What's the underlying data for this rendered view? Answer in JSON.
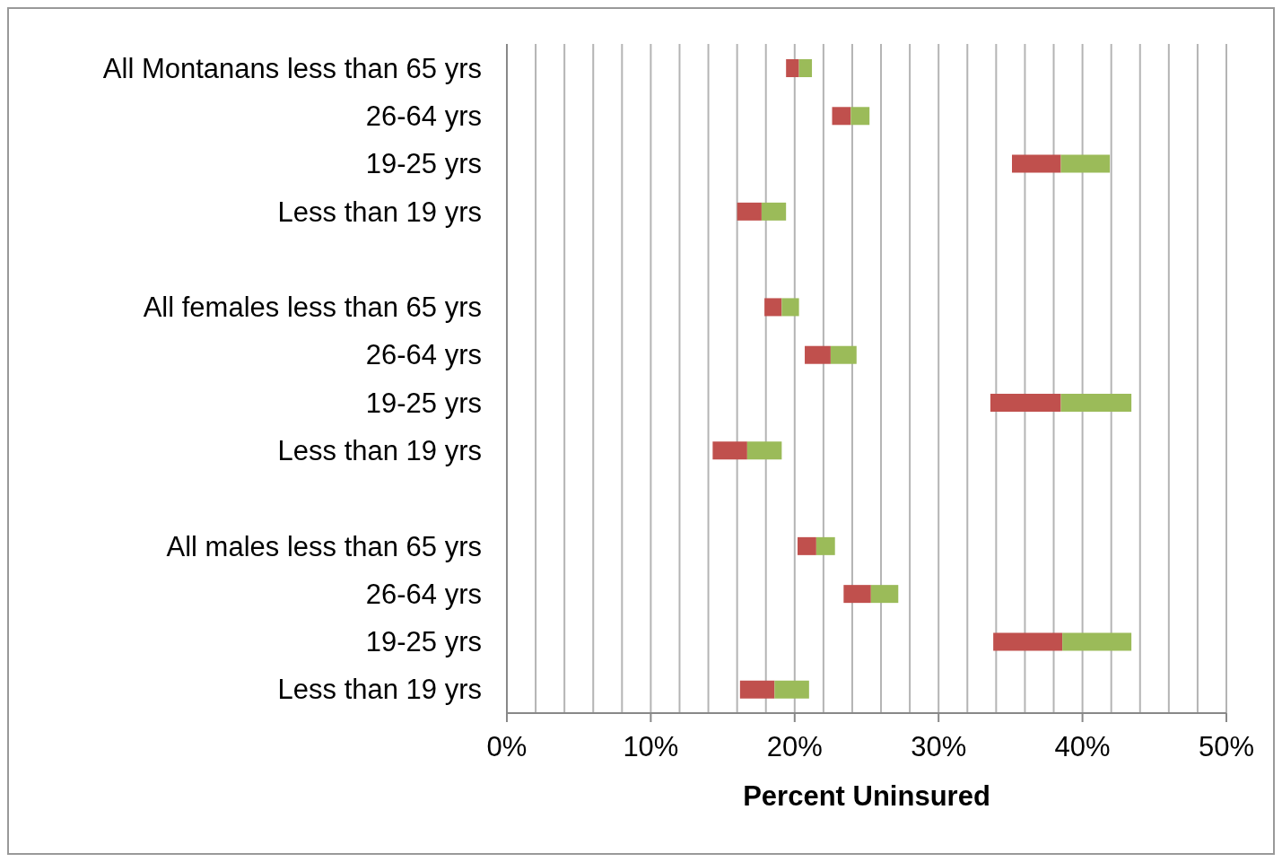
{
  "chart_data": {
    "type": "bar",
    "orientation": "horizontal",
    "xlabel": "Percent Uninsured",
    "categories": [
      "All Montanans less than 65 yrs",
      "26-64 yrs",
      "19-25 yrs",
      "Less than 19 yrs",
      null,
      "All females less than 65 yrs",
      "26-64 yrs",
      "19-25 yrs",
      "Less than 19 yrs",
      null,
      "All males less than 65 yrs",
      "26-64 yrs",
      "19-25 yrs",
      "Less than 19 yrs"
    ],
    "series": [
      {
        "color": "#c0504d",
        "base": [
          19.4,
          22.6,
          35.1,
          16.0,
          null,
          17.9,
          20.7,
          33.6,
          14.3,
          null,
          20.2,
          23.4,
          33.8,
          16.2
        ],
        "values": [
          0.9,
          1.3,
          3.4,
          1.7,
          null,
          1.2,
          1.8,
          4.9,
          2.4,
          null,
          1.3,
          1.9,
          4.8,
          2.4
        ]
      },
      {
        "color": "#9bbb59",
        "base": [
          20.3,
          23.9,
          38.5,
          17.7,
          null,
          19.1,
          22.5,
          38.5,
          16.7,
          null,
          21.5,
          25.3,
          38.6,
          18.6
        ],
        "values": [
          0.9,
          1.3,
          3.4,
          1.7,
          null,
          1.2,
          1.8,
          4.9,
          2.4,
          null,
          1.3,
          1.9,
          4.8,
          2.4
        ]
      }
    ],
    "xlim": [
      0,
      50
    ],
    "xticks": [
      {
        "value": 0,
        "label": "0%"
      },
      {
        "value": 2,
        "label": null
      },
      {
        "value": 4,
        "label": null
      },
      {
        "value": 6,
        "label": null
      },
      {
        "value": 8,
        "label": null
      },
      {
        "value": 10,
        "label": "10%"
      },
      {
        "value": 12,
        "label": null
      },
      {
        "value": 14,
        "label": null
      },
      {
        "value": 16,
        "label": null
      },
      {
        "value": 18,
        "label": null
      },
      {
        "value": 20,
        "label": "20%"
      },
      {
        "value": 22,
        "label": null
      },
      {
        "value": 24,
        "label": null
      },
      {
        "value": 26,
        "label": null
      },
      {
        "value": 28,
        "label": null
      },
      {
        "value": 30,
        "label": "30%"
      },
      {
        "value": 32,
        "label": null
      },
      {
        "value": 34,
        "label": null
      },
      {
        "value": 36,
        "label": null
      },
      {
        "value": 38,
        "label": null
      },
      {
        "value": 40,
        "label": "40%"
      },
      {
        "value": 42,
        "label": null
      },
      {
        "value": 44,
        "label": null
      },
      {
        "value": 46,
        "label": null
      },
      {
        "value": 48,
        "label": null
      },
      {
        "value": 50,
        "label": "50%"
      }
    ],
    "grid": "x"
  }
}
